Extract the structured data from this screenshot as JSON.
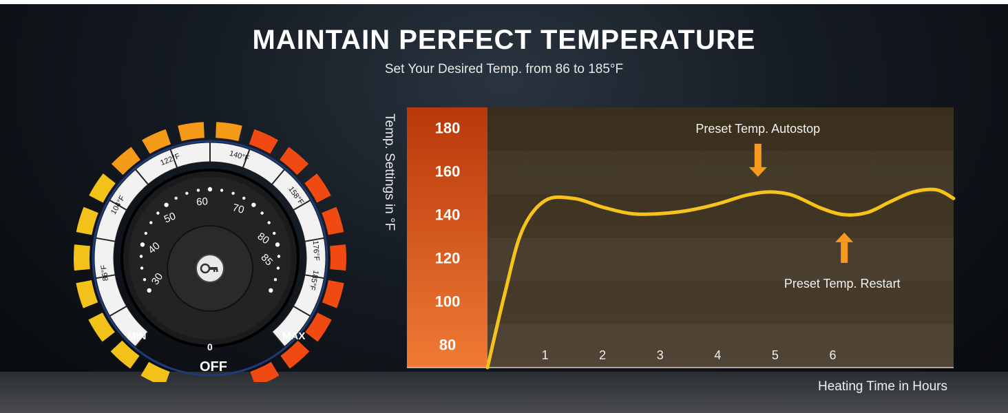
{
  "headline": {
    "title": "MAINTAIN PERFECT TEMPERATURE",
    "subtitle": "Set Your Desired Temp. from 86 to 185°F"
  },
  "dial": {
    "temp_marks": [
      "86°F",
      "104°F",
      "122°F",
      "140°F",
      "158°F",
      "176°F",
      "185°F"
    ],
    "numbers": [
      "30",
      "40",
      "50",
      "60",
      "70",
      "80",
      "85"
    ],
    "min_label": "MIN",
    "max_label": "MAX",
    "zero_label": "0",
    "off_label": "OFF",
    "center_icon": "key-icon",
    "colors": {
      "cool": "#f3c21a",
      "mid": "#f59a18",
      "hot": "#f04a12"
    }
  },
  "chart_data": {
    "type": "line",
    "ylabel": "Temp. Settings in °F",
    "xlabel": "Heating Time in Hours",
    "y_ticks": [
      "80",
      "100",
      "120",
      "140",
      "160",
      "180"
    ],
    "x_ticks": [
      "1",
      "2",
      "3",
      "4",
      "5",
      "6"
    ],
    "ylim": [
      70,
      190
    ],
    "xlim": [
      0,
      8.1
    ],
    "grid": false,
    "series": [
      {
        "x": [
          0,
          0.3,
          0.6,
          1.0,
          1.5,
          2.0,
          2.5,
          3.0,
          3.5,
          4.0,
          4.5,
          4.9,
          5.3,
          5.8,
          6.2,
          6.6,
          7.0,
          7.4,
          7.8,
          8.1
        ],
        "y": [
          70,
          104,
          133,
          147,
          148,
          144,
          141,
          141,
          142.5,
          145.5,
          149.5,
          151,
          149.5,
          143.5,
          140.5,
          141.5,
          146.5,
          151,
          152,
          148
        ]
      }
    ],
    "annotations": [
      {
        "text": "Preset Temp. Autostop",
        "x": 4.7,
        "y": 151,
        "arrow": "down"
      },
      {
        "text": "Preset Temp. Restart",
        "x": 6.2,
        "y": 140.5,
        "arrow": "up"
      }
    ],
    "colors": {
      "line": "#f7c21a",
      "band_top": "#b8380a",
      "band_bottom": "#f07a35",
      "arrow": "#f79a1e"
    }
  }
}
